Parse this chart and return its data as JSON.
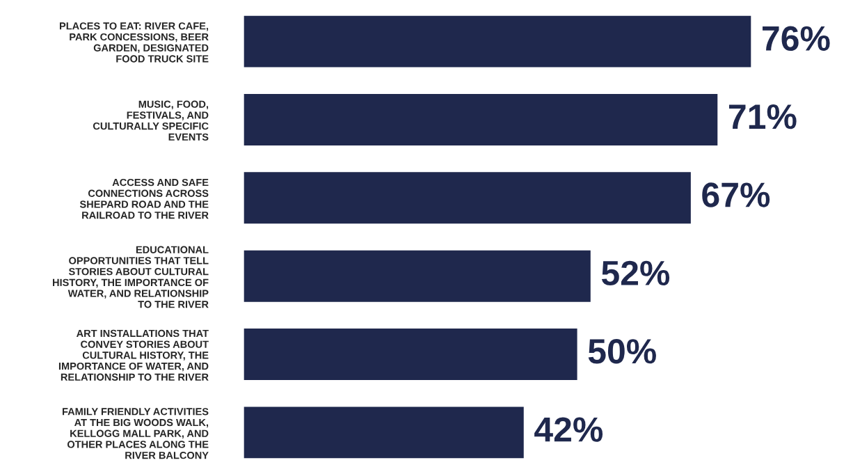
{
  "chart_data": {
    "type": "bar",
    "orientation": "horizontal",
    "tick_labels": "y",
    "color": "#1f284d",
    "categories": [
      "PLACES TO EAT: RIVER CAFE,\nPARK CONCESSIONS, BEER\nGARDEN, DESIGNATED\nFOOD TRUCK SITE",
      "MUSIC, FOOD,\nFESTIVALS, AND\nCULTURALLY SPECIFIC\nEVENTS",
      "ACCESS AND SAFE\nCONNECTIONS ACROSS\nSHEPARD ROAD AND THE\nRAILROAD TO THE RIVER",
      "EDUCATIONAL\nOPPORTUNITIES THAT TELL\nSTORIES ABOUT CULTURAL\nHISTORY, THE IMPORTANCE OF\nWATER, AND RELATIONSHIP\nTO THE RIVER",
      "ART INSTALLATIONS THAT\nCONVEY STORIES ABOUT\nCULTURAL HISTORY, THE\nIMPORTANCE OF WATER, AND\nRELATIONSHIP TO THE RIVER",
      "FAMILY FRIENDLY ACTIVITIES\nAT THE BIG WOODS WALK,\nKELLOGG MALL PARK, AND\nOTHER PLACES ALONG THE\nRIVER BALCONY"
    ],
    "values": [
      76,
      71,
      67,
      52,
      50,
      42
    ],
    "value_labels": [
      "76%",
      "71%",
      "67%",
      "52%",
      "50%",
      "42%"
    ]
  }
}
